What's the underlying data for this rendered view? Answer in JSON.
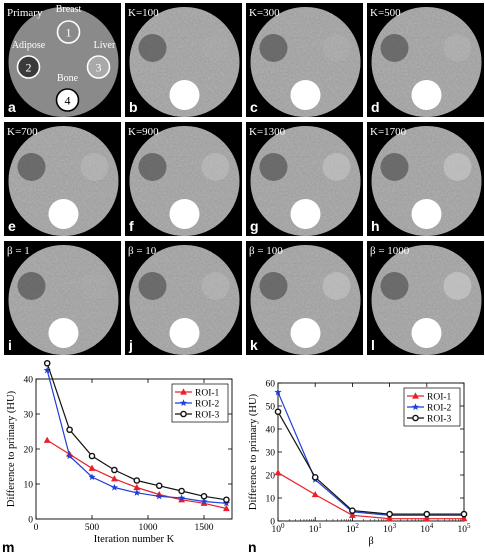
{
  "panels": [
    {
      "letter": "a",
      "label": "Primary",
      "kind": "primary",
      "adipose": 0.0,
      "liver": 0.0
    },
    {
      "letter": "b",
      "label": "K=100",
      "kind": "recon",
      "adipose": 0.55,
      "liver": 0.05
    },
    {
      "letter": "c",
      "label": "K=300",
      "kind": "recon",
      "adipose": 0.55,
      "liver": 0.1
    },
    {
      "letter": "d",
      "label": "K=500",
      "kind": "recon",
      "adipose": 0.55,
      "liver": 0.15
    },
    {
      "letter": "e",
      "label": "K=700",
      "kind": "recon",
      "adipose": 0.55,
      "liver": 0.22
    },
    {
      "letter": "f",
      "label": "K=900",
      "kind": "recon",
      "adipose": 0.55,
      "liver": 0.28
    },
    {
      "letter": "g",
      "label": "K=1300",
      "kind": "recon",
      "adipose": 0.55,
      "liver": 0.35
    },
    {
      "letter": "h",
      "label": "K=1700",
      "kind": "recon",
      "adipose": 0.55,
      "liver": 0.42
    },
    {
      "letter": "i",
      "label": "β = 1",
      "kind": "recon",
      "adipose": 0.55,
      "liver": 0.05
    },
    {
      "letter": "j",
      "label": "β = 10",
      "kind": "recon",
      "adipose": 0.55,
      "liver": 0.2
    },
    {
      "letter": "k",
      "label": "β = 100",
      "kind": "recon",
      "adipose": 0.55,
      "liver": 0.35
    },
    {
      "letter": "l",
      "label": "β = 1000",
      "kind": "recon",
      "adipose": 0.55,
      "liver": 0.45
    }
  ],
  "phantom_labels": [
    {
      "name": "Breast",
      "number": "1",
      "ring": "#ffffff"
    },
    {
      "name": "Adipose",
      "number": "2",
      "ring": "#ffffff"
    },
    {
      "name": "Liver",
      "number": "3",
      "ring": "#ffffff"
    },
    {
      "name": "Bone",
      "number": "4",
      "ring": "#000000"
    }
  ],
  "chart_data": [
    {
      "type": "line",
      "panel_letter": "m",
      "xlabel": "Iteration number K",
      "ylabel": "Difference to primary (HU)",
      "xlim": [
        0,
        1750
      ],
      "ylim": [
        0,
        40
      ],
      "xticks": [
        0,
        500,
        1000,
        1500
      ],
      "yticks": [
        0,
        10,
        20,
        30,
        40
      ],
      "legend": "top-right",
      "series": [
        {
          "name": "ROI-1",
          "color": "#e8202a",
          "marker": "triangle",
          "x": [
            100,
            300,
            500,
            700,
            900,
            1100,
            1300,
            1500,
            1700
          ],
          "y": [
            22.5,
            18.5,
            14.5,
            11.5,
            9,
            7,
            5.5,
            4.5,
            3
          ]
        },
        {
          "name": "ROI-2",
          "color": "#1f3fd6",
          "marker": "star",
          "x": [
            100,
            300,
            500,
            700,
            900,
            1100,
            1300,
            1500,
            1700
          ],
          "y": [
            42.5,
            18,
            12,
            9,
            7.5,
            6.5,
            6,
            5,
            4.5
          ]
        },
        {
          "name": "ROI-3",
          "color": "#111111",
          "marker": "circle",
          "x": [
            100,
            300,
            500,
            700,
            900,
            1100,
            1300,
            1500,
            1700
          ],
          "y": [
            44.5,
            25.5,
            18,
            14,
            11,
            9.5,
            8,
            6.5,
            5.5
          ]
        }
      ]
    },
    {
      "type": "line",
      "panel_letter": "n",
      "xlabel": "β",
      "ylabel": "Difference to primary (HU)",
      "xscale": "log",
      "xlim": [
        1,
        100000
      ],
      "ylim": [
        0,
        60
      ],
      "xticks": [
        1,
        10,
        100,
        1000,
        10000,
        100000
      ],
      "xtick_labels": [
        {
          "base": "10",
          "exp": "0"
        },
        {
          "base": "10",
          "exp": "1"
        },
        {
          "base": "10",
          "exp": "2"
        },
        {
          "base": "10",
          "exp": "3"
        },
        {
          "base": "10",
          "exp": "4"
        },
        {
          "base": "10",
          "exp": "5"
        }
      ],
      "yticks": [
        0,
        10,
        20,
        30,
        40,
        50,
        60
      ],
      "legend": "top-right",
      "series": [
        {
          "name": "ROI-1",
          "color": "#e8202a",
          "marker": "triangle",
          "x": [
            1,
            10,
            100,
            1000,
            10000,
            100000
          ],
          "y": [
            21,
            11.5,
            2.5,
            1,
            1,
            1
          ]
        },
        {
          "name": "ROI-2",
          "color": "#1f3fd6",
          "marker": "star",
          "x": [
            1,
            10,
            100,
            1000,
            10000,
            100000
          ],
          "y": [
            56,
            18,
            4,
            2.5,
            2.5,
            2.5
          ]
        },
        {
          "name": "ROI-3",
          "color": "#111111",
          "marker": "circle",
          "x": [
            1,
            10,
            100,
            1000,
            10000,
            100000
          ],
          "y": [
            47.5,
            19,
            4.5,
            3,
            3,
            3
          ]
        }
      ]
    }
  ]
}
